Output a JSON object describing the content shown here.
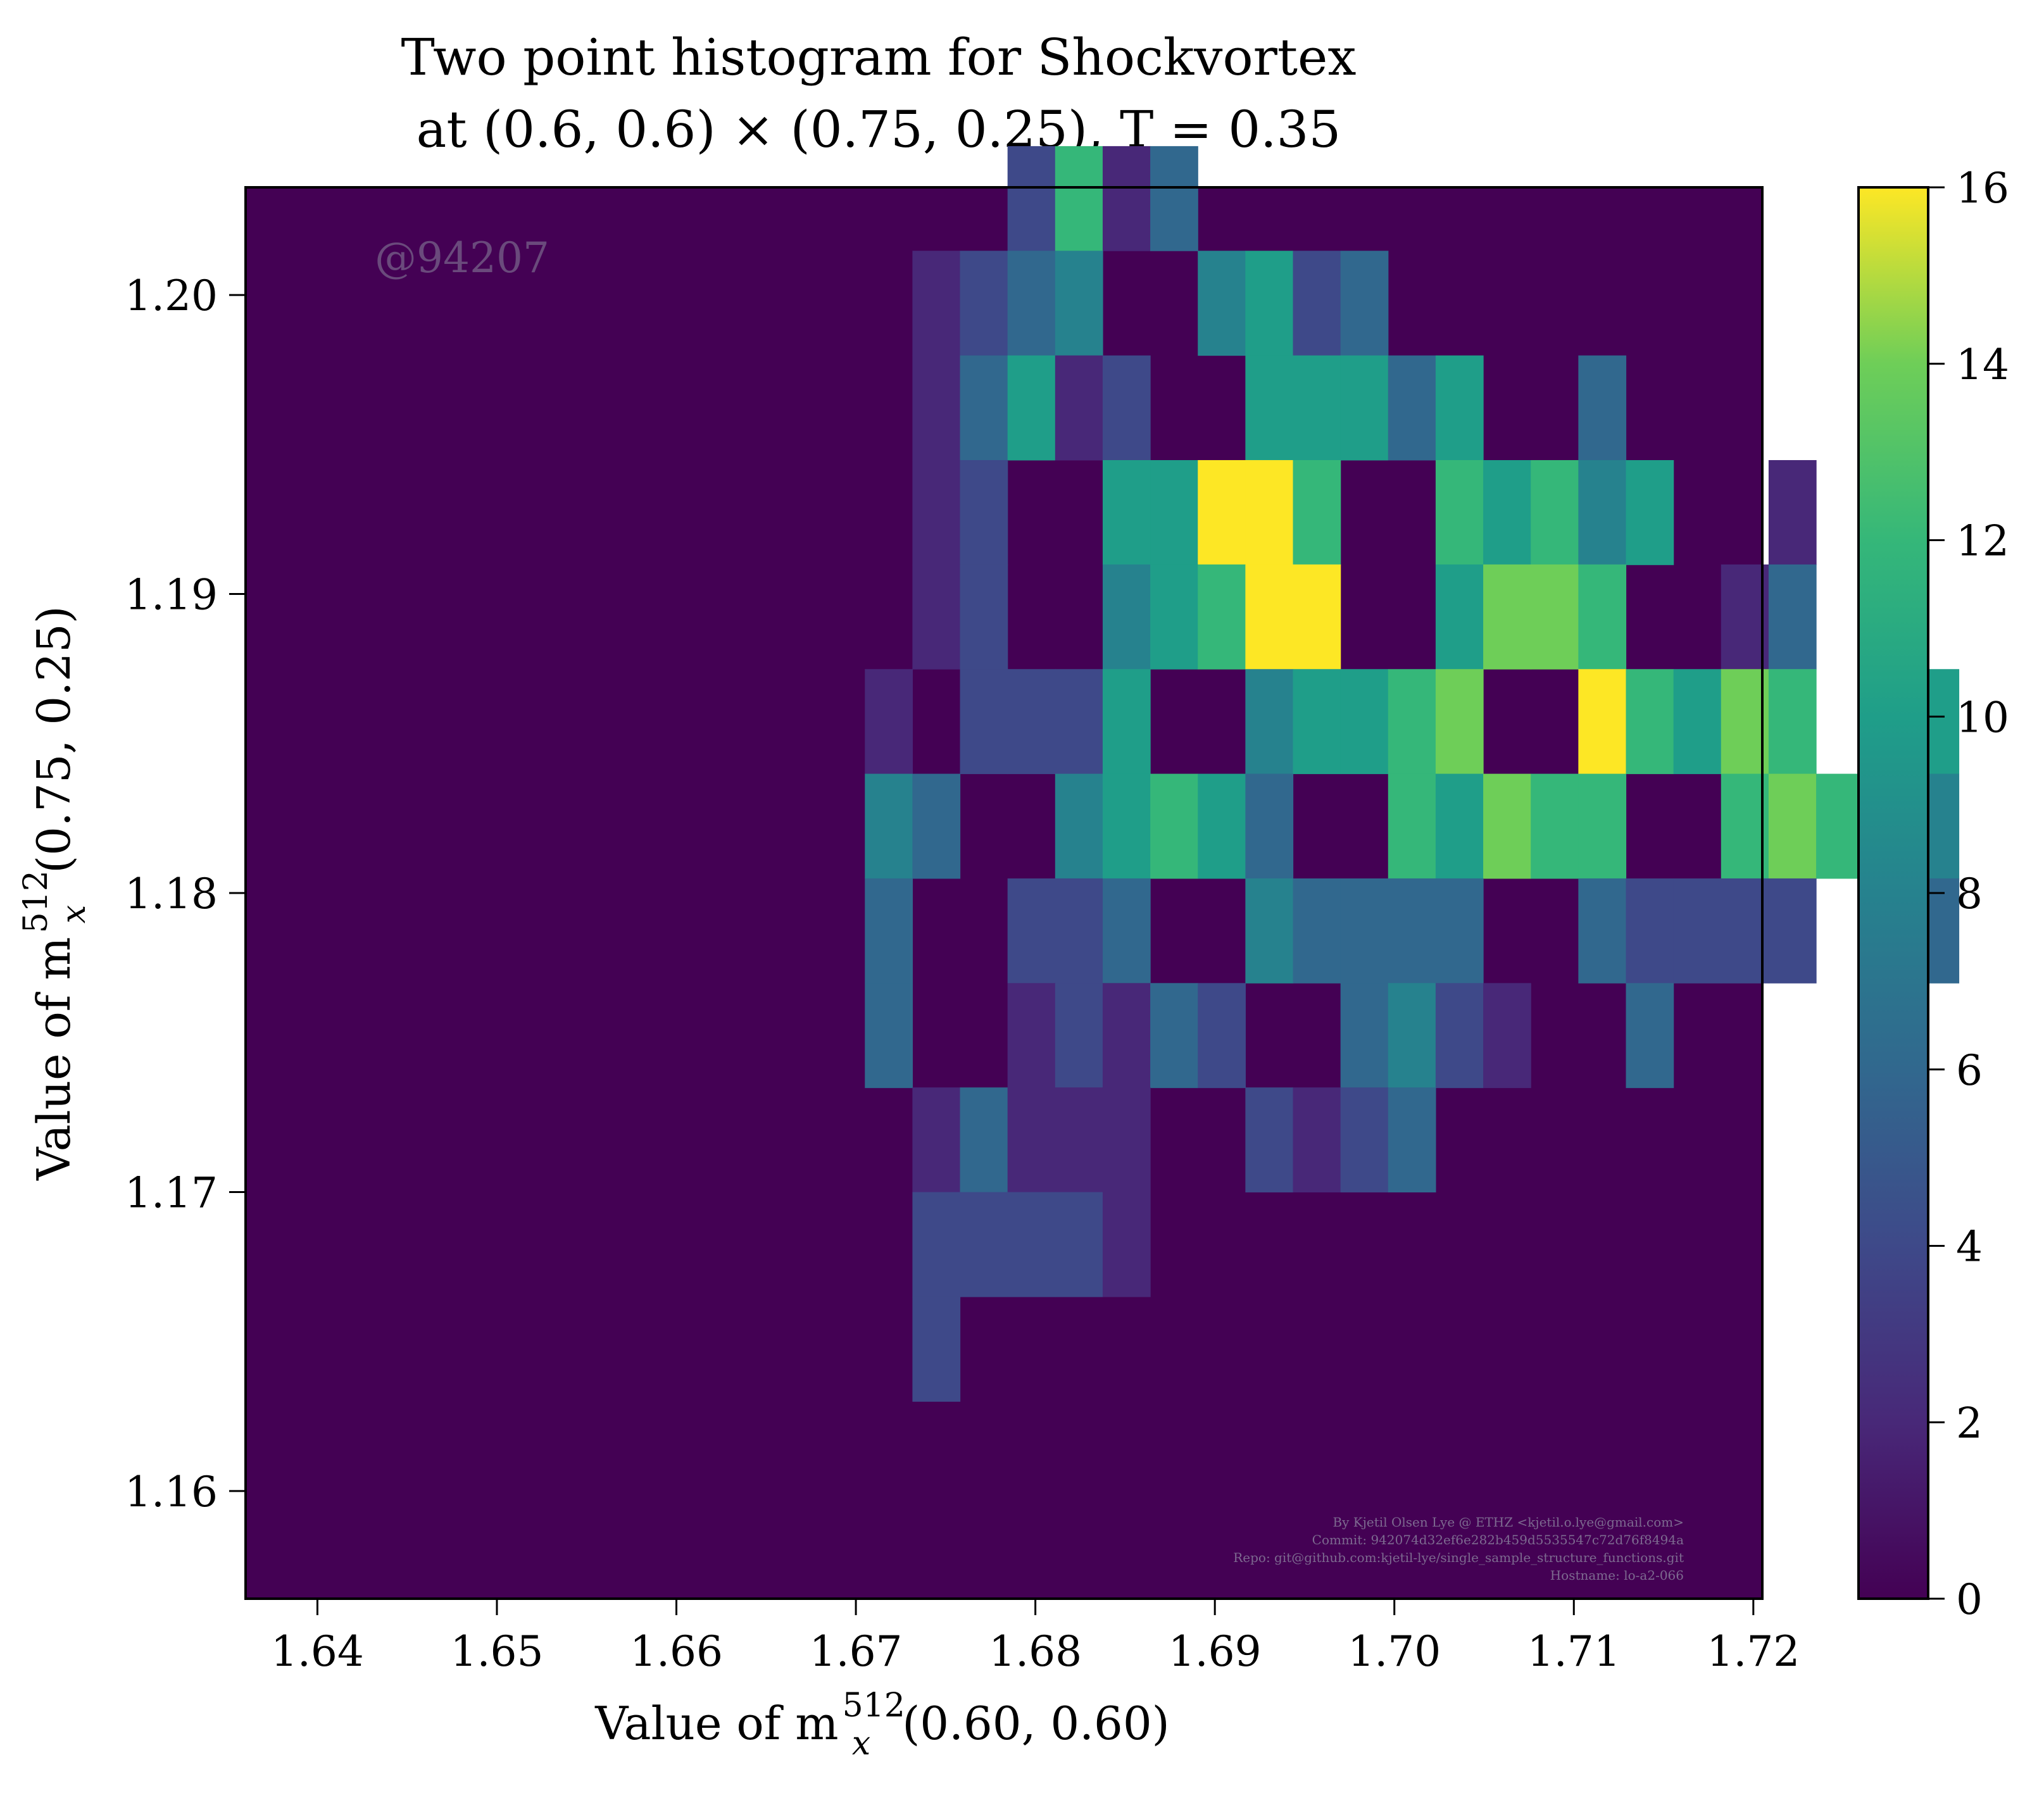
{
  "chart_data": {
    "type": "heatmap",
    "title_line1": "Two point histogram for Shockvortex",
    "title_line2": "at (0.6, 0.6) × (0.75, 0.25), T = 0.35",
    "xlabel": "Value of m",
    "xlabel_sub": "x",
    "xlabel_sup": "512",
    "xlabel_arg": "(0.60, 0.60)",
    "ylabel": "Value of m",
    "ylabel_sub": "x",
    "ylabel_sup": "512",
    "ylabel_arg": "(0.75, 0.25)",
    "xlim": [
      1.636,
      1.7205
    ],
    "ylim": [
      1.1564,
      1.2036
    ],
    "xticks": [
      1.64,
      1.65,
      1.66,
      1.67,
      1.68,
      1.69,
      1.7,
      1.71,
      1.72
    ],
    "xtick_labels": [
      "1.64",
      "1.65",
      "1.66",
      "1.67",
      "1.68",
      "1.69",
      "1.70",
      "1.71",
      "1.72"
    ],
    "yticks": [
      1.16,
      1.17,
      1.18,
      1.19,
      1.2
    ],
    "ytick_labels": [
      "1.16",
      "1.17",
      "1.18",
      "1.19",
      "1.20"
    ],
    "colorbar_ticks": [
      0,
      2,
      4,
      6,
      8,
      10,
      12,
      14,
      16
    ],
    "colorbar_tick_labels": [
      "0",
      "2",
      "4",
      "6",
      "8",
      "10",
      "12",
      "14",
      "16"
    ],
    "vmin": 0,
    "vmax": 16,
    "colormap": "viridis",
    "background_color": "#440154",
    "grid": false,
    "watermark": "@94207",
    "credit_lines": [
      "By Kjetil Olsen Lye @ ETHZ <kjetil.o.lye@gmail.com>",
      "Commit: 942074d32ef6e282b459d5535547c72d76f8494a",
      "Repo: git@github.com:kjetil-lye/single_sample_structure_functions.git",
      "Hostname: lo-a2-066"
    ],
    "bin_origin_x": 1.6652,
    "bin_origin_y": 1.163,
    "bin_width_x": 0.00265,
    "bin_height_y": 0.00159,
    "rows_top_to_bottom": [
      "     2613  ",
      "   1234  4523  ",
      "   13512  55535  3 ",
      "   12  55996  65645  1 ",
      "   12  45689  5776  13 ",
      "  1 2225  45567  96576  5 ",
      "  43  45653  65766  67644  1 ",
      "  3  223  43333  32222  3 ",
      "  3  12132  3421  3 ",
      "   13111  2123 ",
      "   22221 ",
      "   2 "
    ],
    "bins": []
  }
}
